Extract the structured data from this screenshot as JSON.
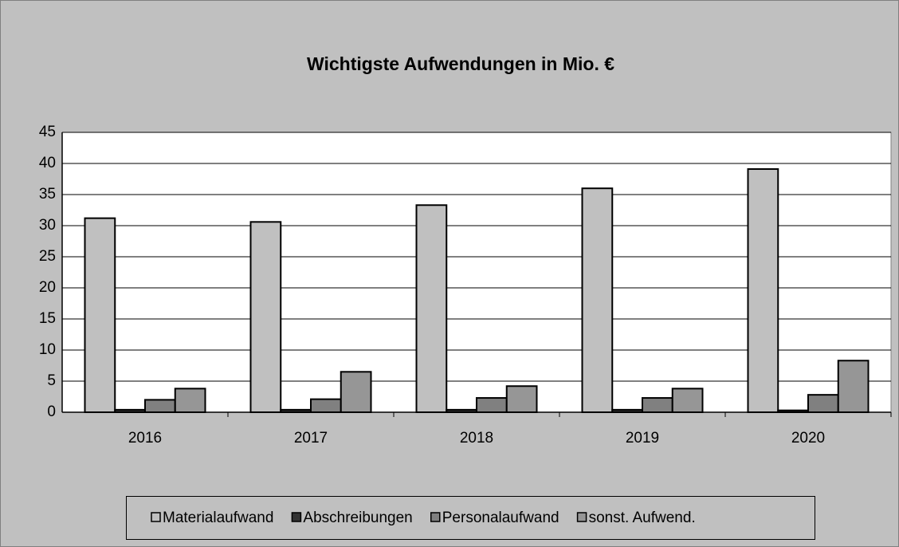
{
  "chart_data": {
    "type": "bar",
    "title": "Wichtigste Aufwendungen in Mio. €",
    "categories": [
      "2016",
      "2017",
      "2018",
      "2019",
      "2020"
    ],
    "series": [
      {
        "name": "Materialaufwand",
        "color": "#c0c0c0",
        "values": [
          31.2,
          30.6,
          33.3,
          36.0,
          39.1
        ]
      },
      {
        "name": "Abschreibungen",
        "color": "#333333",
        "values": [
          0.4,
          0.4,
          0.4,
          0.4,
          0.3
        ]
      },
      {
        "name": "Personalaufwand",
        "color": "#808080",
        "values": [
          2.0,
          2.1,
          2.3,
          2.3,
          2.8
        ]
      },
      {
        "name": "sonst. Aufwend.",
        "color": "#969696",
        "values": [
          3.8,
          6.5,
          4.2,
          3.8,
          8.3
        ]
      }
    ],
    "ylim": [
      0,
      45
    ],
    "yticks": [
      0,
      5,
      10,
      15,
      20,
      25,
      30,
      35,
      40,
      45
    ],
    "grid": true,
    "legend": "bottom"
  }
}
